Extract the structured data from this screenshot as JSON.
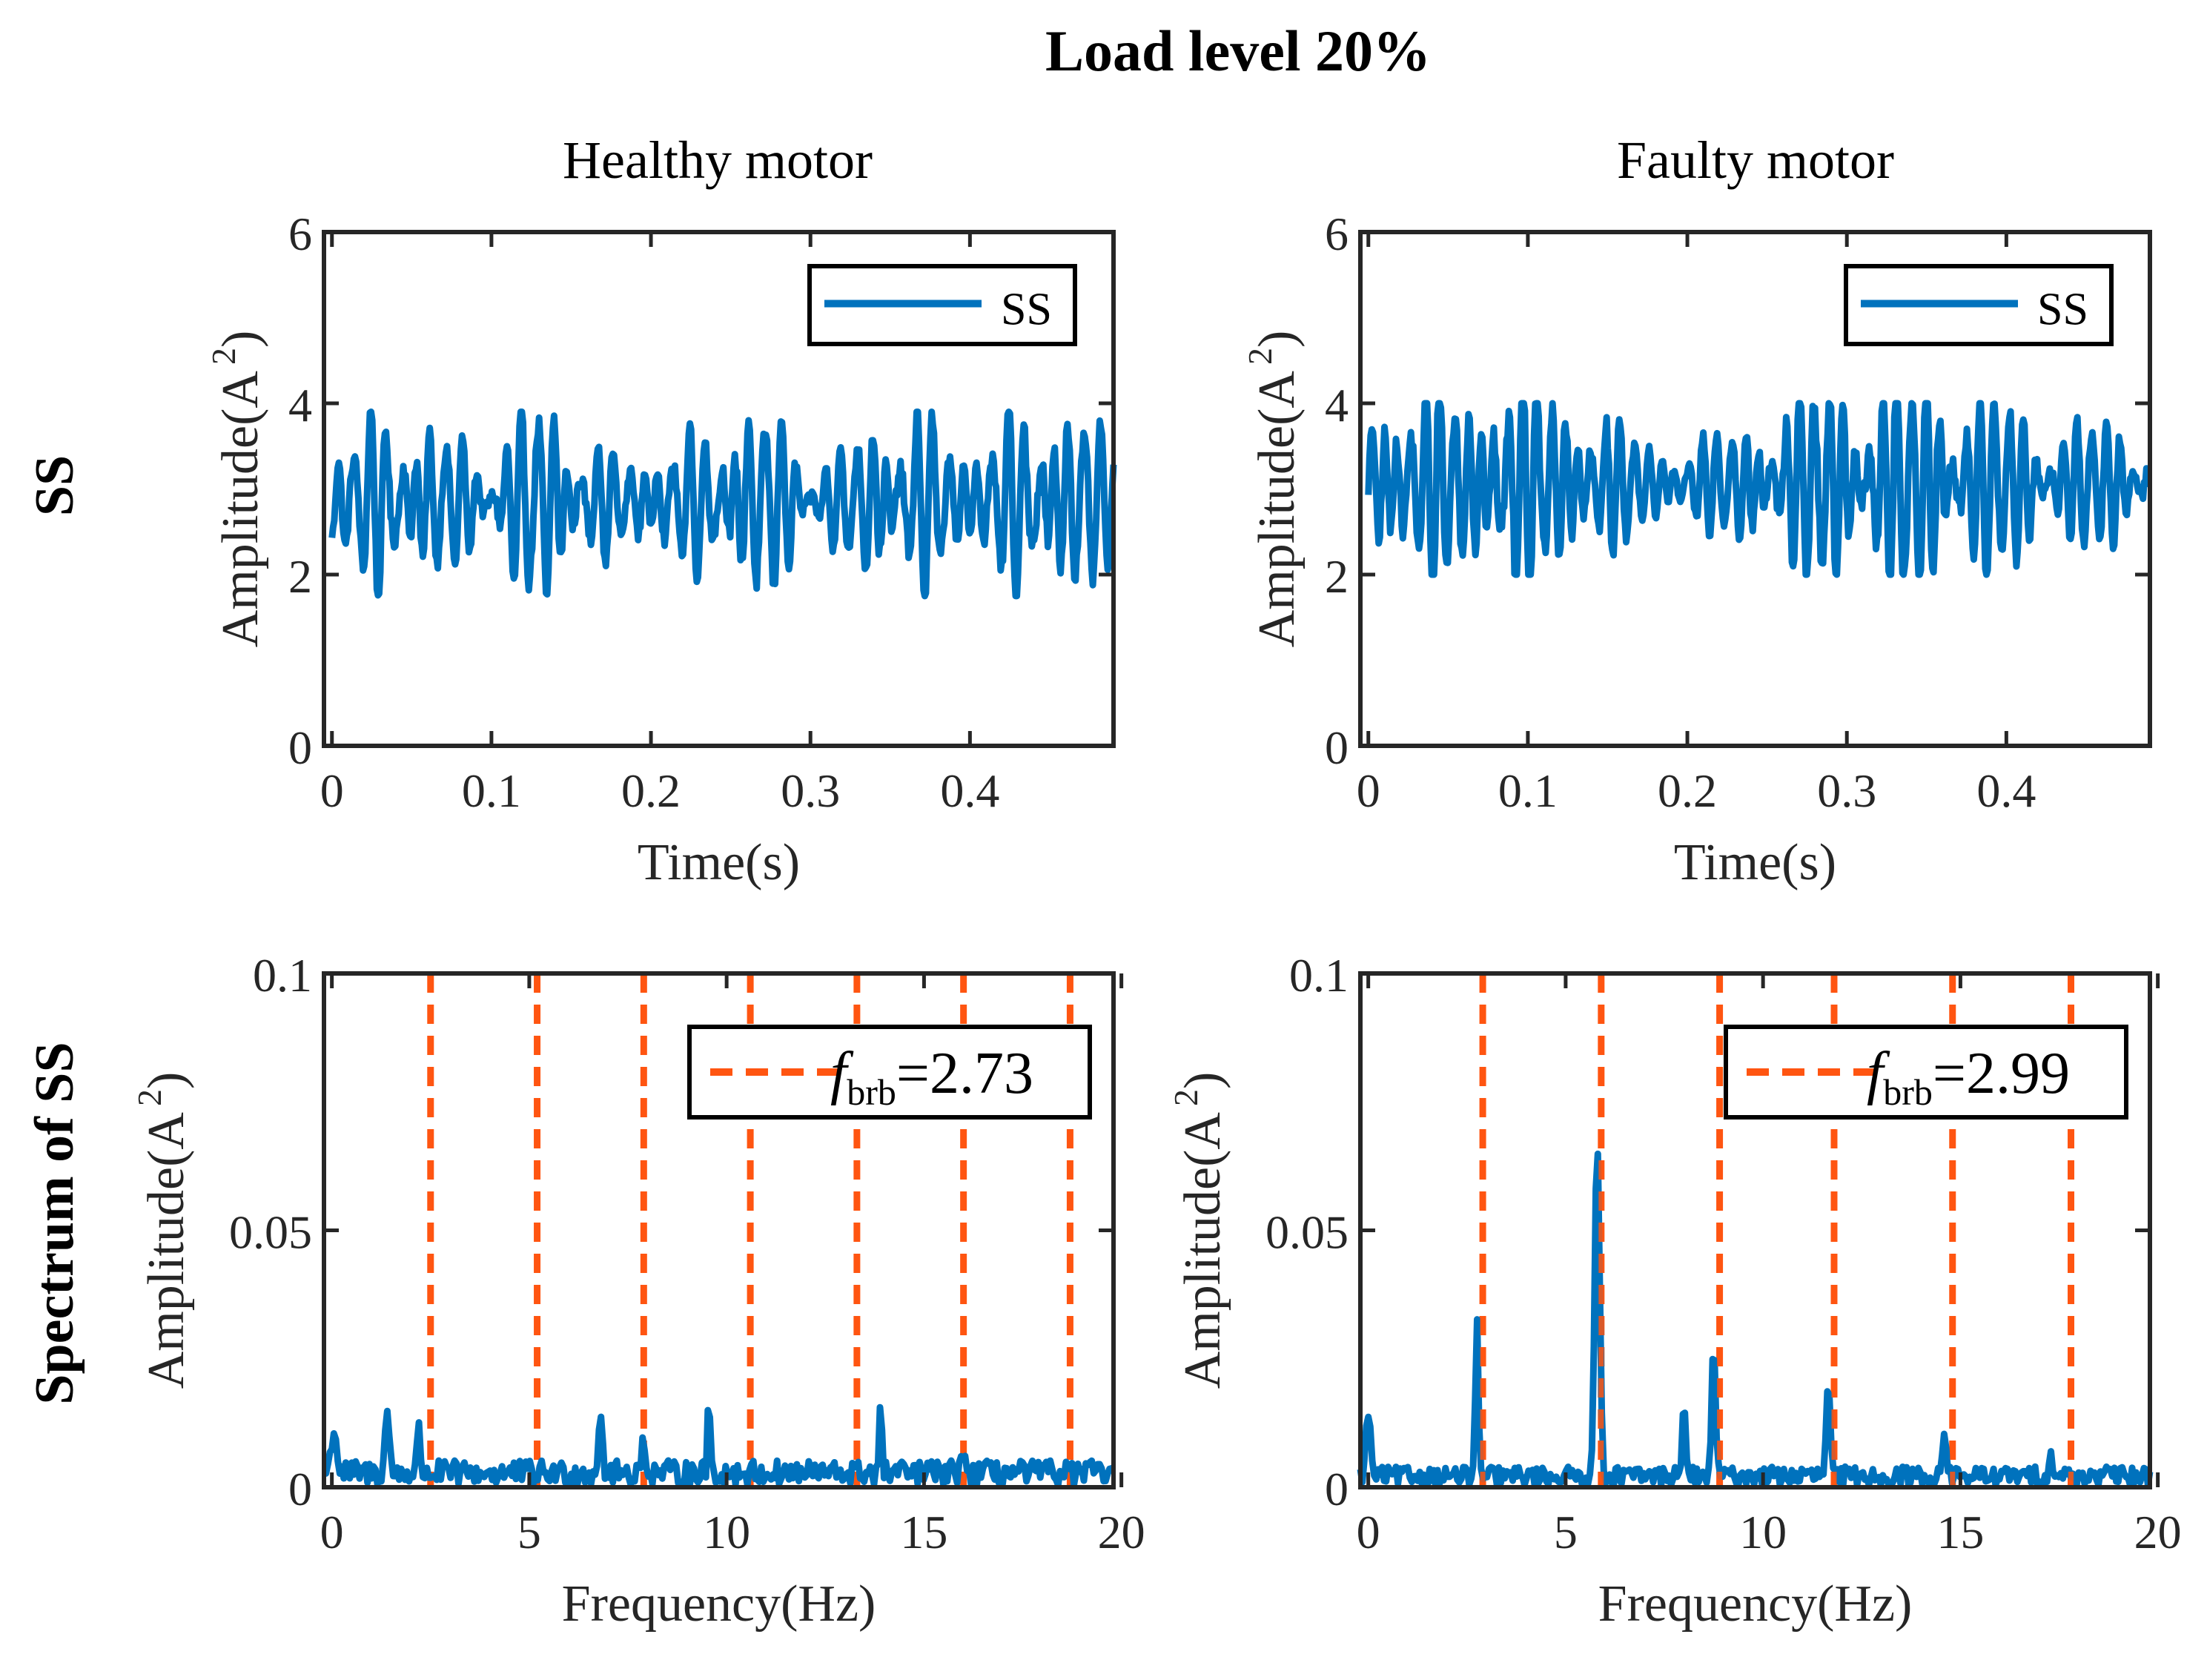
{
  "figure": {
    "title": "Load level 20%",
    "column_titles": [
      "Healthy motor",
      "Faulty motor"
    ],
    "row_labels": [
      "SS",
      "Spectrum of SS"
    ]
  },
  "colors": {
    "series": "#0072BD",
    "harmonic": "#FF5511",
    "axis": "#262626"
  },
  "chart_data": [
    {
      "id": "healthy-time",
      "type": "line",
      "xlabel": "Time(s)",
      "ylabel": "Amplitude(A",
      "ylabel_sup": "2",
      "ylabel_close": ")",
      "xlim": [
        -0.005,
        0.49
      ],
      "ylim": [
        0,
        6
      ],
      "xticks": [
        0,
        0.1,
        0.2,
        0.3,
        0.4
      ],
      "xtick_labels": [
        "0",
        "0.1",
        "0.2",
        "0.3",
        "0.4"
      ],
      "yticks": [
        0,
        2,
        4,
        6
      ],
      "ytick_labels": [
        "0",
        "2",
        "4",
        "6"
      ],
      "legend": {
        "label": "SS",
        "style": "solid",
        "position": "top-right"
      },
      "signal": {
        "kind": "time",
        "n": 680,
        "mean": 2.85,
        "amplitude": 0.55,
        "envelope": [
          0.9,
          1.25,
          0.7,
          1.4,
          0.6,
          0.9,
          1.3,
          0.6,
          1.35,
          0.8,
          1.4,
          0.9
        ],
        "components": [
          {
            "f": 105,
            "a": 1.0
          },
          {
            "f": 85,
            "a": 0.55
          },
          {
            "f": 140,
            "a": 0.35
          }
        ],
        "range": [
          1.75,
          3.9
        ]
      }
    },
    {
      "id": "faulty-time",
      "type": "line",
      "xlabel": "Time(s)",
      "ylabel": "Amplitude(A",
      "ylabel_sup": "2",
      "ylabel_close": ")",
      "xlim": [
        -0.005,
        0.49
      ],
      "ylim": [
        0,
        6
      ],
      "xticks": [
        0,
        0.1,
        0.2,
        0.3,
        0.4
      ],
      "xtick_labels": [
        "0",
        "0.1",
        "0.2",
        "0.3",
        "0.4"
      ],
      "yticks": [
        0,
        2,
        4,
        6
      ],
      "ytick_labels": [
        "0",
        "2",
        "4",
        "6"
      ],
      "legend": {
        "label": "SS",
        "style": "solid",
        "position": "top-right"
      },
      "signal": {
        "kind": "time",
        "n": 680,
        "mean": 3.05,
        "amplitude": 0.55,
        "envelope": [
          1.2,
          1.4,
          1.5,
          1.2,
          0.55,
          0.7,
          1.3,
          1.5,
          1.6,
          1.1,
          0.9,
          0.8
        ],
        "components": [
          {
            "f": 115,
            "a": 1.0
          },
          {
            "f": 98,
            "a": 0.5
          },
          {
            "f": 150,
            "a": 0.3
          }
        ],
        "range": [
          2.0,
          4.0
        ]
      }
    },
    {
      "id": "healthy-spectrum",
      "type": "line",
      "xlabel": "Frequency(Hz)",
      "ylabel": "Amplitude(A",
      "ylabel_sup": "2",
      "ylabel_close": ")",
      "xlim": [
        -0.2,
        19.8
      ],
      "ylim": [
        0,
        0.1
      ],
      "xticks": [
        0,
        5,
        10,
        15,
        20
      ],
      "xtick_labels": [
        "0",
        "5",
        "10",
        "15",
        "20"
      ],
      "yticks": [
        0,
        0.05,
        0.1
      ],
      "ytick_labels": [
        "0",
        "0.05",
        "0.1"
      ],
      "legend": {
        "label_main": "f",
        "label_sub": "brb",
        "label_value": "=2.73",
        "style": "dashed",
        "position": "top-right"
      },
      "harmonics": [
        2.5,
        5.2,
        7.9,
        10.6,
        13.3,
        16.0,
        18.7
      ],
      "signal": {
        "kind": "spectrum",
        "n": 400,
        "base": 0.0028,
        "noise": 0.0024,
        "peaks": [
          {
            "f": 0.05,
            "a": 0.0085,
            "w": 0.1
          },
          {
            "f": 1.4,
            "a": 0.0125,
            "w": 0.07
          },
          {
            "f": 2.2,
            "a": 0.008,
            "w": 0.06
          },
          {
            "f": 6.8,
            "a": 0.0115,
            "w": 0.07
          },
          {
            "f": 7.9,
            "a": 0.0075,
            "w": 0.06
          },
          {
            "f": 9.55,
            "a": 0.0135,
            "w": 0.05
          },
          {
            "f": 13.9,
            "a": 0.0115,
            "w": 0.05
          },
          {
            "f": 16.0,
            "a": 0.005,
            "w": 0.06
          }
        ]
      }
    },
    {
      "id": "faulty-spectrum",
      "type": "line",
      "xlabel": "Frequency(Hz)",
      "ylabel": "Amplitude(A",
      "ylabel_sup": "2",
      "ylabel_close": ")",
      "xlim": [
        -0.2,
        19.8
      ],
      "ylim": [
        0,
        0.1
      ],
      "xticks": [
        0,
        5,
        10,
        15,
        20
      ],
      "xtick_labels": [
        "0",
        "5",
        "10",
        "15",
        "20"
      ],
      "yticks": [
        0,
        0.05,
        0.1
      ],
      "ytick_labels": [
        "0",
        "0.05",
        "0.1"
      ],
      "legend": {
        "label_main": "f",
        "label_sub": "brb",
        "label_value": "=2.99",
        "style": "dashed",
        "position": "top-right"
      },
      "harmonics": [
        2.9,
        5.9,
        8.9,
        11.8,
        14.8,
        17.8
      ],
      "signal": {
        "kind": "spectrum",
        "n": 400,
        "base": 0.0022,
        "noise": 0.0018,
        "peaks": [
          {
            "f": 0.0,
            "a": 0.0125,
            "w": 0.08
          },
          {
            "f": 2.75,
            "a": 0.031,
            "w": 0.05
          },
          {
            "f": 5.8,
            "a": 0.063,
            "w": 0.09
          },
          {
            "f": 8.0,
            "a": 0.0165,
            "w": 0.05
          },
          {
            "f": 8.75,
            "a": 0.0245,
            "w": 0.07
          },
          {
            "f": 11.65,
            "a": 0.0175,
            "w": 0.07
          },
          {
            "f": 14.6,
            "a": 0.0085,
            "w": 0.07
          },
          {
            "f": 17.3,
            "a": 0.0045,
            "w": 0.06
          }
        ]
      }
    }
  ]
}
